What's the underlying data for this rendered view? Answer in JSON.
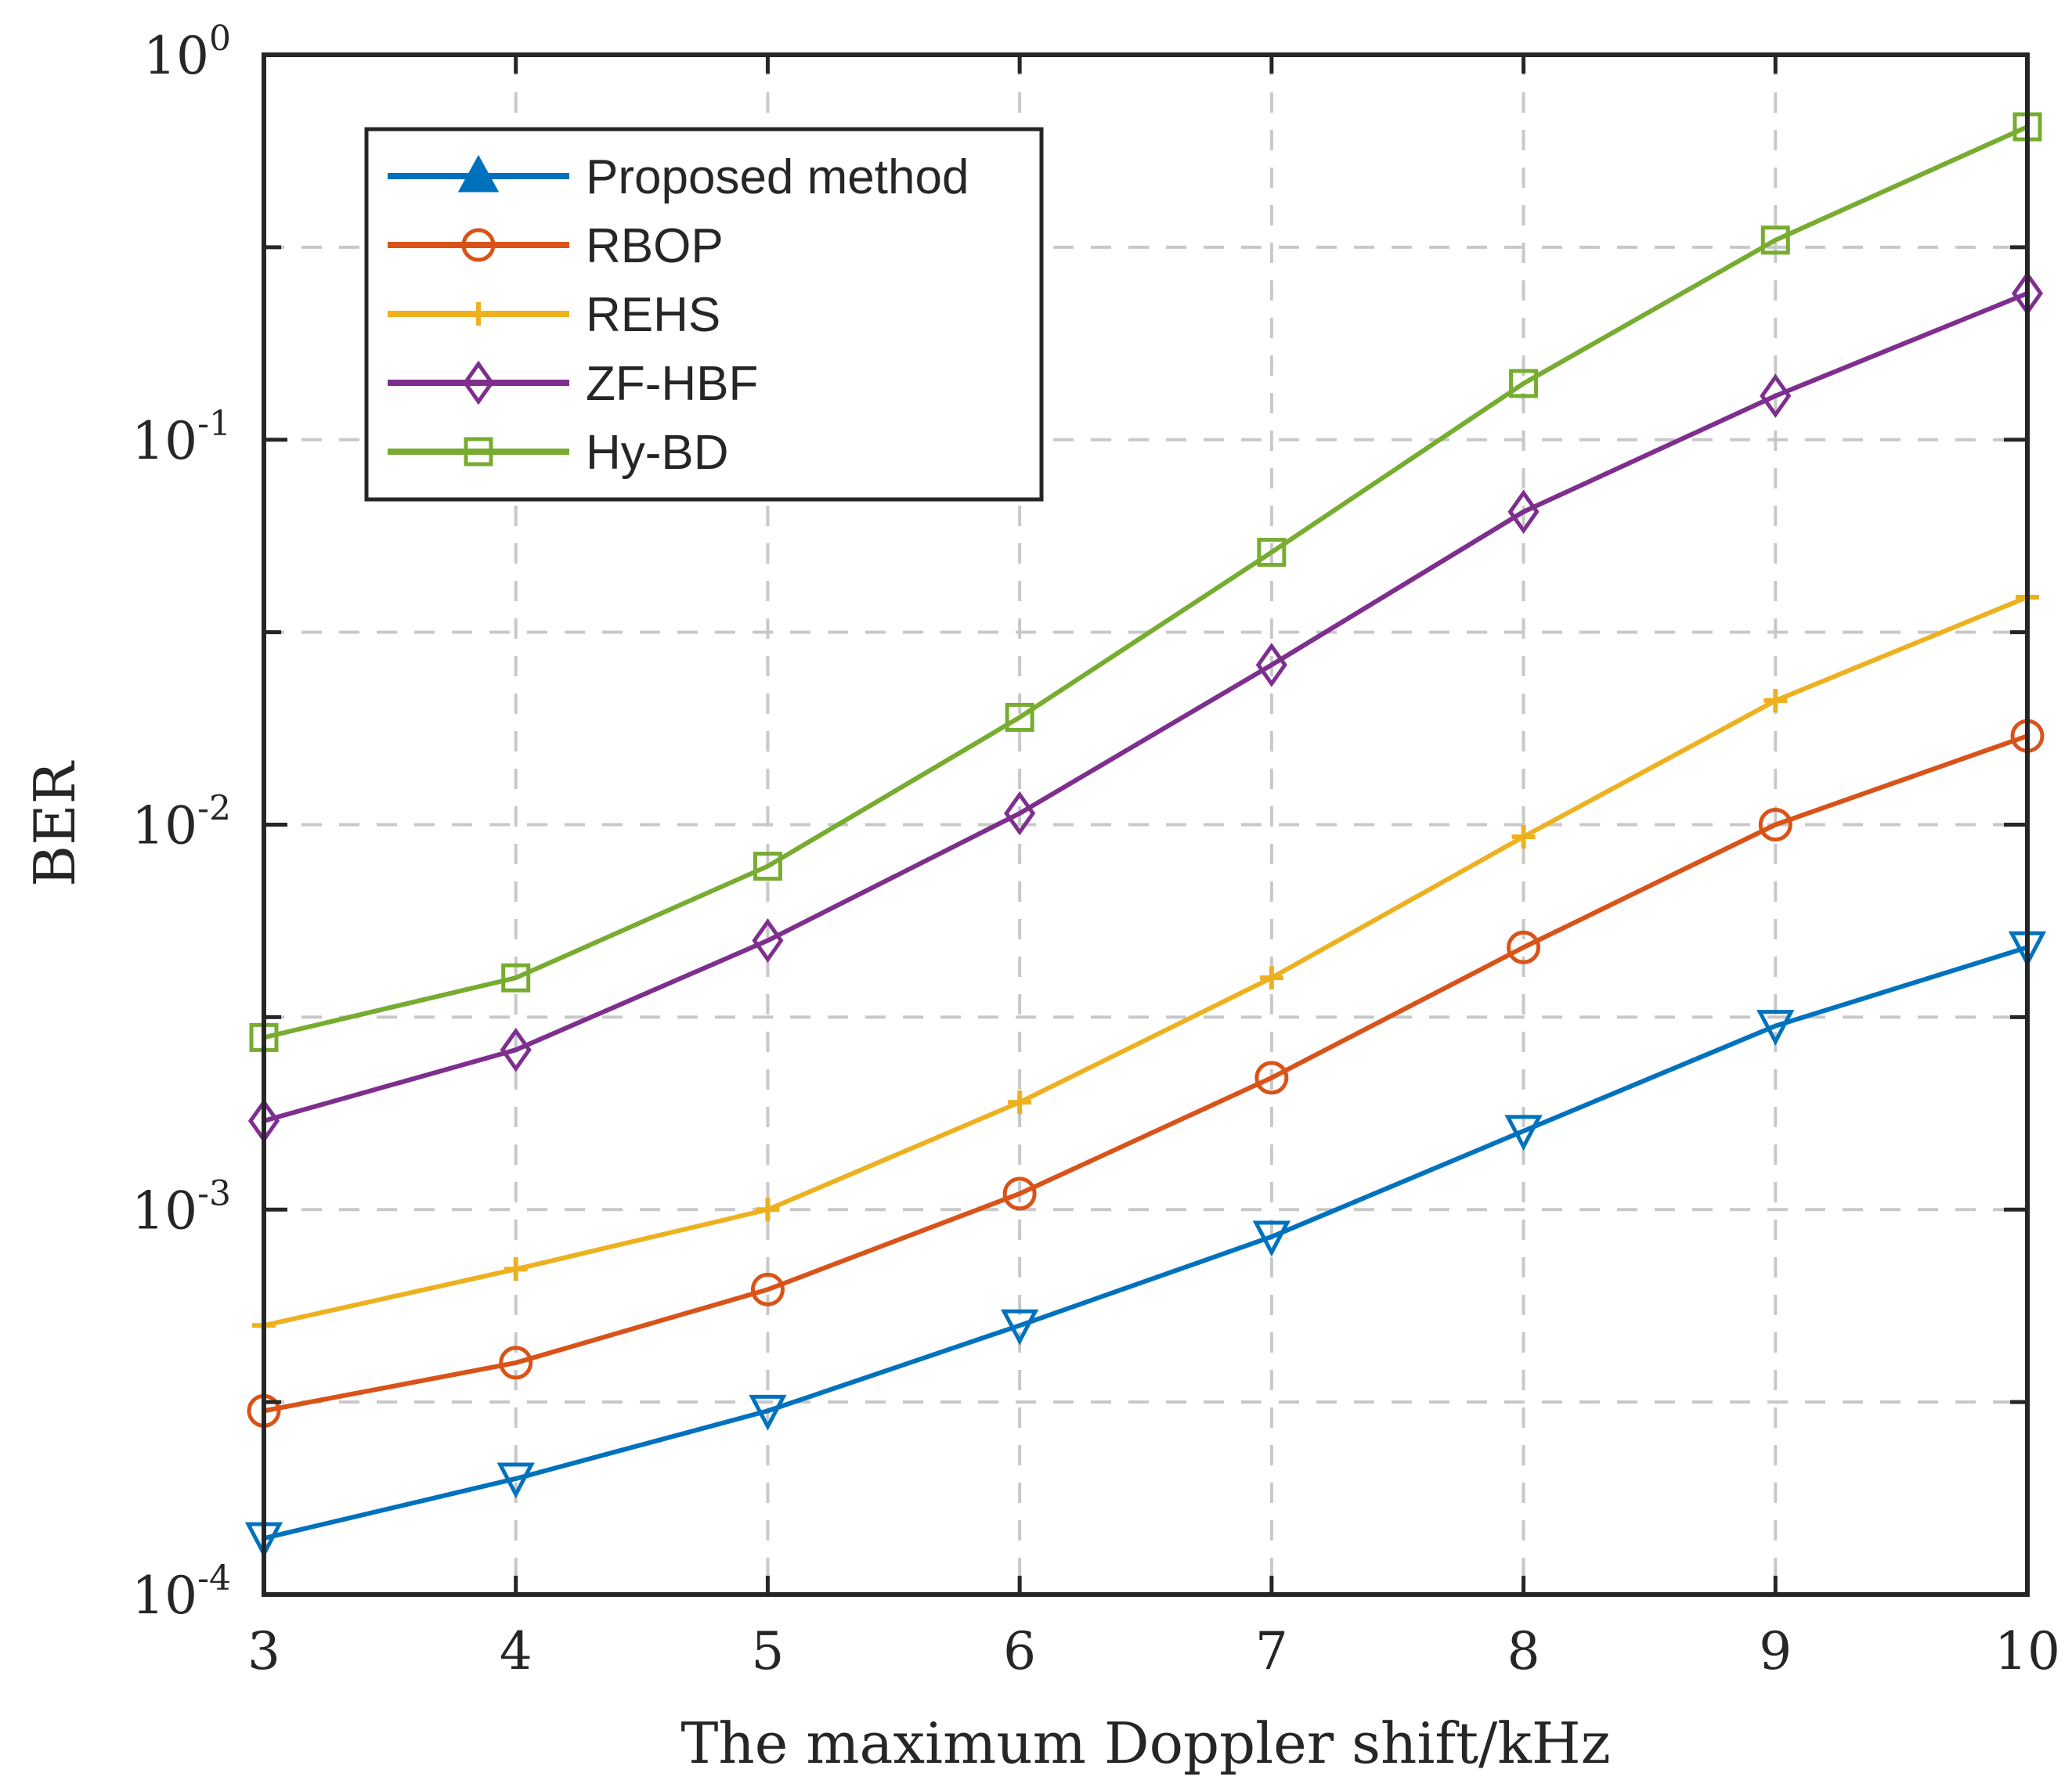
{
  "chart_data": {
    "type": "line",
    "title": "",
    "xlabel": "The maximum Doppler shift/kHz",
    "ylabel": "BER",
    "x": [
      3,
      4,
      5,
      6,
      7,
      8,
      9,
      10
    ],
    "xlim": [
      3,
      10
    ],
    "ylim": [
      0.0001,
      1
    ],
    "yscale": "log",
    "x_ticks": [
      "3",
      "4",
      "5",
      "6",
      "7",
      "8",
      "9",
      "10"
    ],
    "y_ticks": [
      {
        "base": "10",
        "exp": "-4"
      },
      {
        "base": "10",
        "exp": "-3"
      },
      {
        "base": "10",
        "exp": "-2"
      },
      {
        "base": "10",
        "exp": "-1"
      },
      {
        "base": "10",
        "exp": "0"
      }
    ],
    "grid": true,
    "legend_position": "top-left",
    "series": [
      {
        "name": "Proposed method",
        "color": "#0072BD",
        "marker": "triangle-down",
        "legend_marker": "triangle-up",
        "values": [
          0.00014,
          0.0002,
          0.0003,
          0.0005,
          0.00085,
          0.0016,
          0.003,
          0.0048
        ]
      },
      {
        "name": "RBOP",
        "color": "#D95319",
        "marker": "circle",
        "legend_marker": "circle",
        "values": [
          0.0003,
          0.0004,
          0.00062,
          0.0011,
          0.0022,
          0.0048,
          0.01,
          0.017
        ]
      },
      {
        "name": "REHS",
        "color": "#EDB120",
        "marker": "plus",
        "legend_marker": "plus",
        "values": [
          0.0005,
          0.0007,
          0.001,
          0.0019,
          0.004,
          0.0093,
          0.021,
          0.039
        ]
      },
      {
        "name": "ZF-HBF",
        "color": "#7E2F8E",
        "marker": "diamond",
        "legend_marker": "diamond",
        "values": [
          0.0017,
          0.0026,
          0.005,
          0.0107,
          0.026,
          0.065,
          0.13,
          0.24
        ]
      },
      {
        "name": "Hy-BD",
        "color": "#77AC30",
        "marker": "square",
        "legend_marker": "square",
        "values": [
          0.0028,
          0.004,
          0.0078,
          0.019,
          0.051,
          0.14,
          0.33,
          0.65
        ]
      }
    ]
  }
}
